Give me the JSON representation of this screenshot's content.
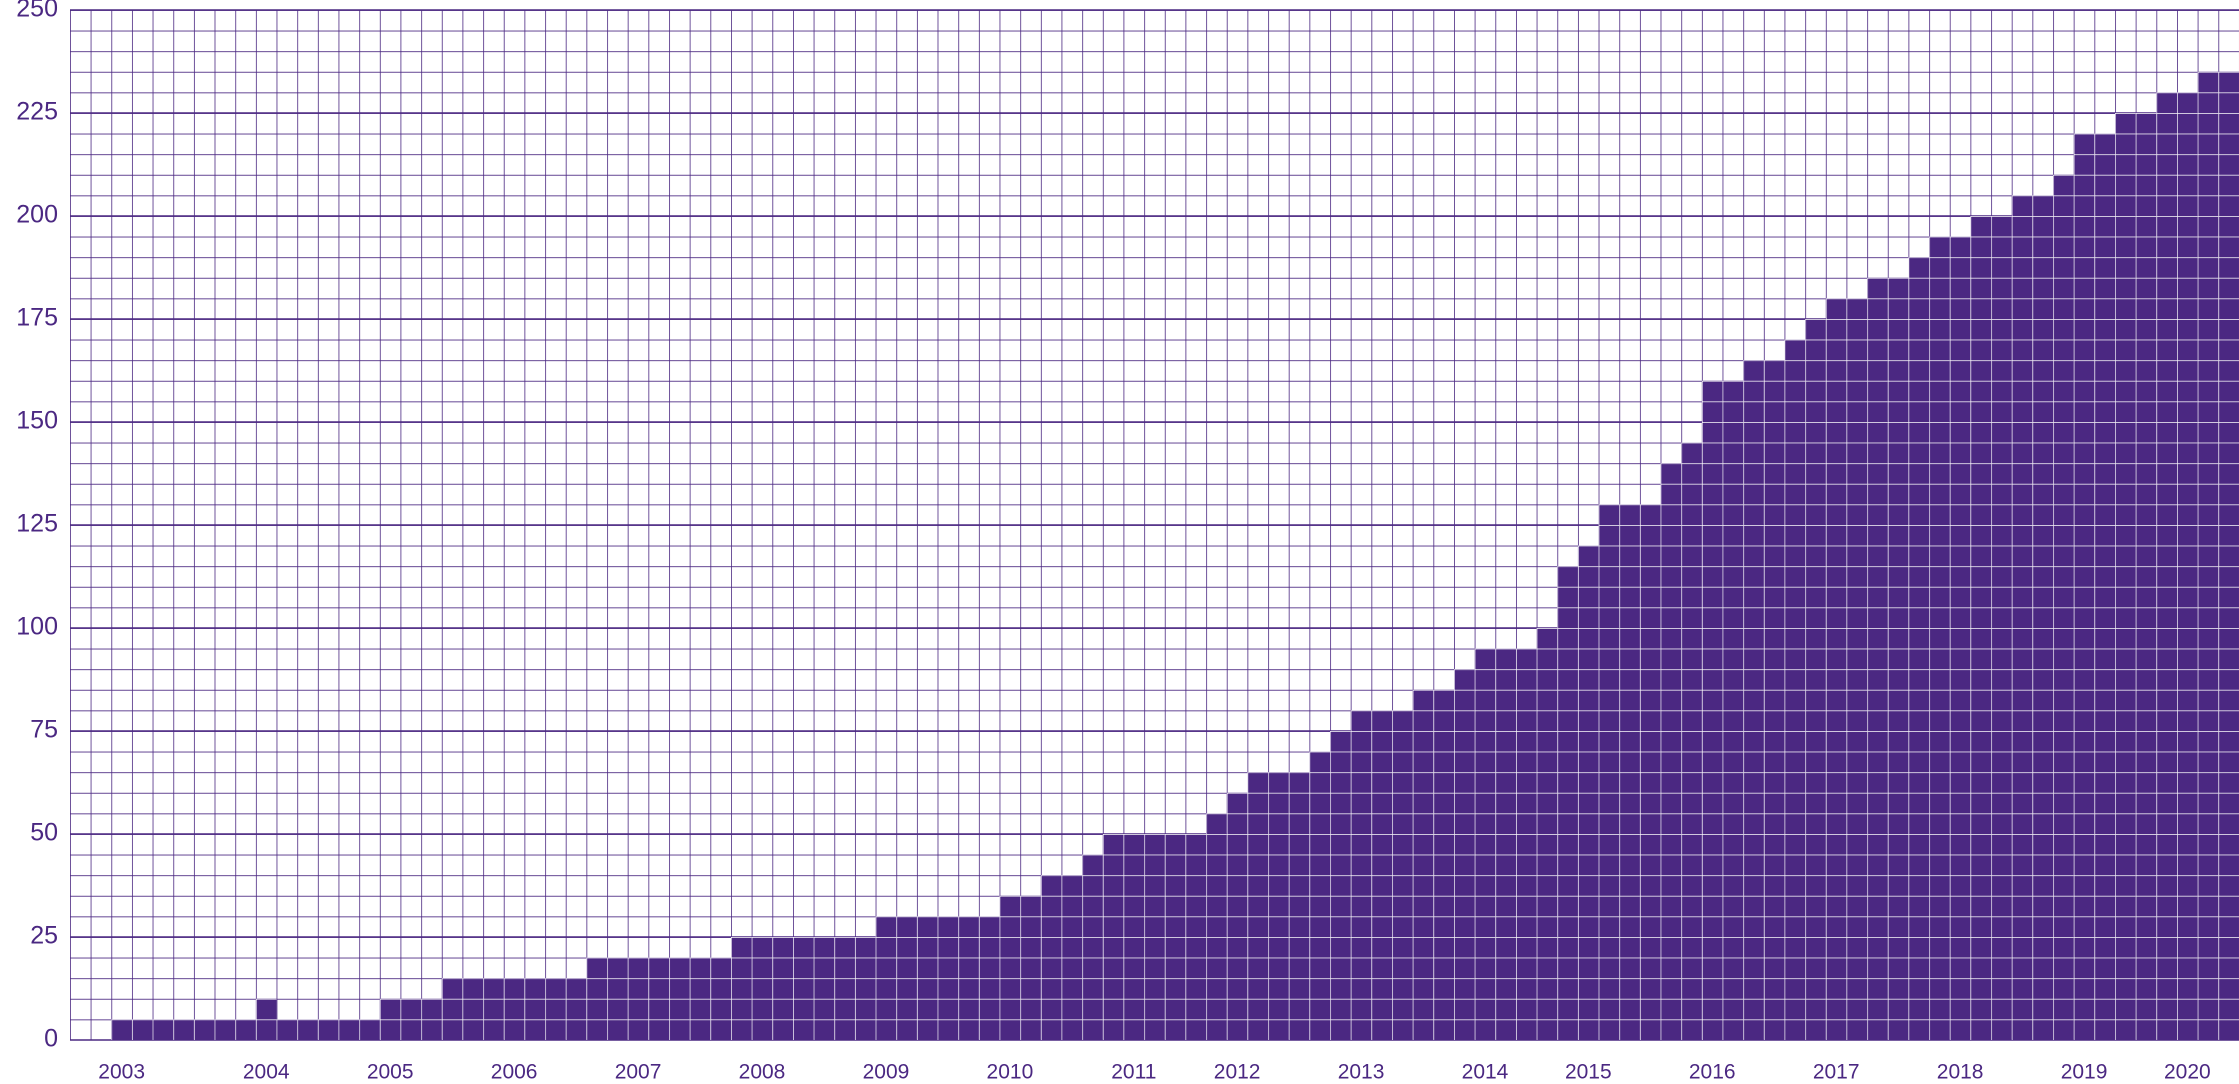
{
  "chart_data": {
    "type": "bar",
    "categories": [
      null,
      null,
      "2003",
      null,
      null,
      null,
      null,
      null,
      null,
      "2004",
      null,
      null,
      null,
      null,
      null,
      "2005",
      null,
      null,
      null,
      null,
      null,
      "2006",
      null,
      null,
      null,
      null,
      null,
      "2007",
      null,
      null,
      null,
      null,
      null,
      "2008",
      null,
      null,
      null,
      null,
      null,
      "2009",
      null,
      null,
      null,
      null,
      null,
      "2010",
      null,
      null,
      null,
      null,
      null,
      "2011",
      null,
      null,
      null,
      null,
      "2012",
      null,
      null,
      null,
      null,
      null,
      "2013",
      null,
      null,
      null,
      null,
      null,
      "2014",
      null,
      null,
      null,
      null,
      "2015",
      null,
      null,
      null,
      null,
      null,
      "2016",
      null,
      null,
      null,
      null,
      null,
      "2017",
      null,
      null,
      null,
      null,
      null,
      "2018",
      null,
      null,
      null,
      null,
      null,
      "2019",
      null,
      null,
      null,
      null,
      "2020",
      null,
      null
    ],
    "values": [
      0,
      0,
      5,
      5,
      5,
      5,
      5,
      5,
      5,
      10,
      5,
      5,
      5,
      5,
      5,
      10,
      10,
      10,
      15,
      15,
      15,
      15,
      15,
      15,
      15,
      20,
      20,
      20,
      20,
      20,
      20,
      20,
      25,
      25,
      25,
      25,
      25,
      25,
      25,
      30,
      30,
      30,
      30,
      30,
      30,
      35,
      35,
      40,
      40,
      45,
      50,
      50,
      50,
      50,
      50,
      55,
      60,
      65,
      65,
      65,
      70,
      75,
      80,
      80,
      80,
      85,
      85,
      90,
      95,
      95,
      95,
      100,
      115,
      120,
      130,
      130,
      130,
      140,
      145,
      160,
      160,
      165,
      165,
      170,
      175,
      180,
      180,
      185,
      185,
      190,
      195,
      195,
      200,
      200,
      205,
      205,
      210,
      220,
      220,
      225,
      225,
      230,
      230,
      235,
      235
    ],
    "color": "#4b2882",
    "ylim": [
      0,
      250
    ],
    "yticks": [
      0,
      25,
      50,
      75,
      100,
      125,
      150,
      175,
      200,
      225,
      250
    ],
    "grid": true
  }
}
